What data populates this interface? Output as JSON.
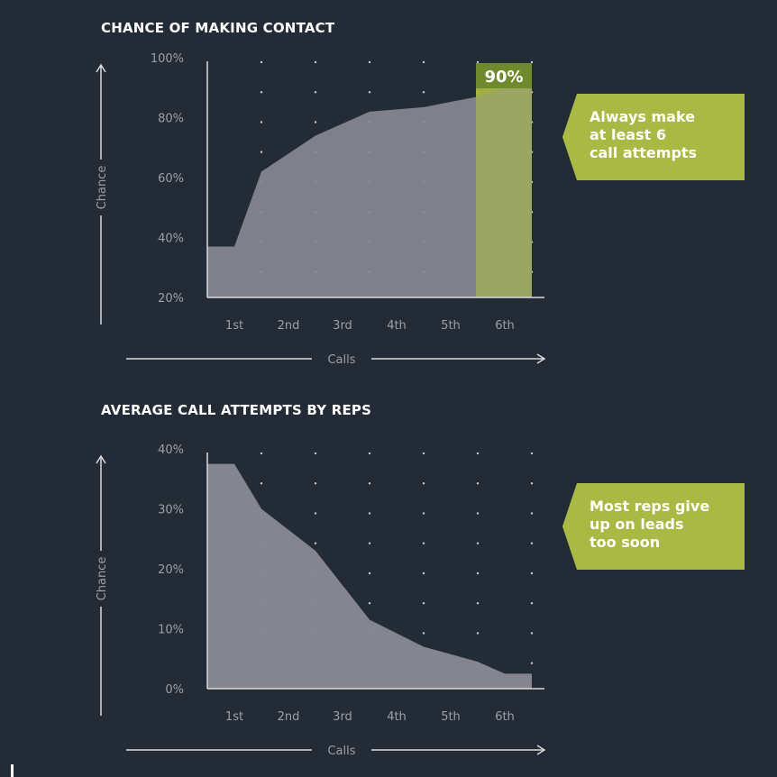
{
  "chart_data": [
    {
      "type": "area",
      "title": "CHANCE OF MAKING CONTACT",
      "xlabel": "Calls",
      "ylabel": "Chance",
      "categories": [
        "1st",
        "2nd",
        "3rd",
        "4th",
        "5th",
        "6th"
      ],
      "yticks": [
        "100%",
        "80%",
        "60%",
        "40%",
        "20%"
      ],
      "ylim": [
        20,
        100
      ],
      "line_x": [
        0,
        0.5,
        1,
        2,
        3,
        4,
        5,
        5.5,
        6
      ],
      "line_y": [
        37,
        37,
        62,
        74,
        82,
        83.5,
        87,
        90,
        90
      ],
      "highlight": {
        "category": "6th",
        "label": "90%",
        "color": "#aab944"
      },
      "grid": "dotted",
      "callout": "Always make\nat least 6\ncall attempts"
    },
    {
      "type": "area",
      "title": "AVERAGE CALL ATTEMPTS BY REPS",
      "xlabel": "Calls",
      "ylabel": "Chance",
      "categories": [
        "1st",
        "2nd",
        "3rd",
        "4th",
        "5th",
        "6th"
      ],
      "yticks": [
        "40%",
        "30%",
        "20%",
        "10%",
        "0%"
      ],
      "ylim": [
        0,
        40
      ],
      "line_x": [
        0,
        0.5,
        1,
        2,
        3,
        4,
        5,
        5.5,
        6
      ],
      "line_y": [
        37.5,
        37.5,
        30,
        23,
        11.5,
        7,
        4.5,
        2.5,
        2.5
      ],
      "grid": "dotted",
      "callout": "Most reps give\nup on leads\ntoo soon"
    }
  ],
  "colors": {
    "background": "#222b36",
    "area_fill": "#8a8a95",
    "axis": "#d9d9d9",
    "text_muted": "#9aa0a8",
    "accent": "#aab944",
    "accent_dark": "#6f8a2c"
  }
}
